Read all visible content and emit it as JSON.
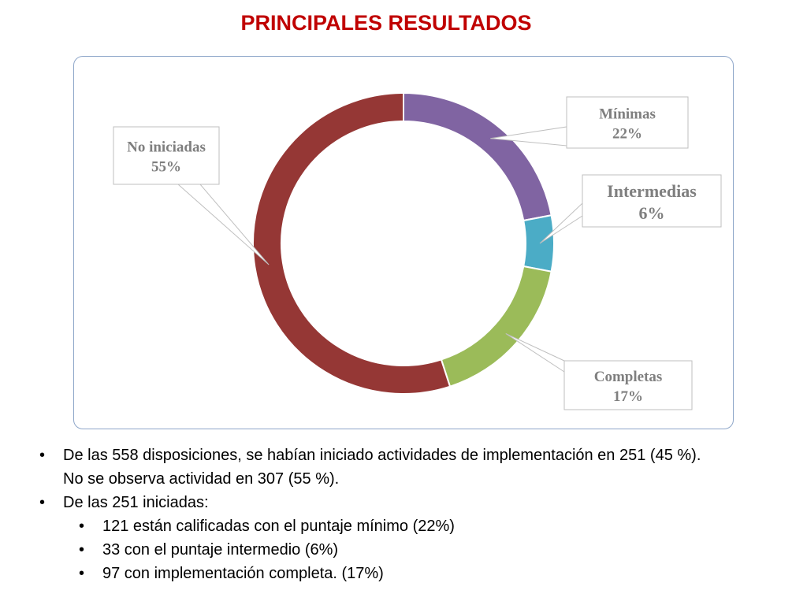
{
  "slide": {
    "title": "PRINCIPALES RESULTADOS"
  },
  "chart_data": {
    "type": "pie",
    "variant": "doughnut",
    "title": "",
    "legend": "none",
    "slices": [
      {
        "label": "Mínimas",
        "value": 22,
        "value_label": "22%",
        "color": "#8064a2"
      },
      {
        "label": "Intermedias",
        "value": 6,
        "value_label": "6%",
        "color": "#4bacc6"
      },
      {
        "label": "Completas",
        "value": 17,
        "value_label": "17%",
        "color": "#9bbb59"
      },
      {
        "label": "No iniciadas",
        "value": 55,
        "value_label": "55%",
        "color": "#953735"
      }
    ]
  },
  "bullets": [
    {
      "level": 1,
      "text": "De las 558 disposiciones, se habían iniciado actividades de implementación en 251 (45 %).",
      "continuation": "No se observa actividad en 307 (55 %)."
    },
    {
      "level": 1,
      "text": "De las 251 iniciadas:"
    },
    {
      "level": 2,
      "text": "121 están calificadas con el puntaje mínimo (22%)"
    },
    {
      "level": 2,
      "text": "33 con el puntaje intermedio (6%)"
    },
    {
      "level": 2,
      "text": "97 con implementación completa. (17%)"
    }
  ]
}
